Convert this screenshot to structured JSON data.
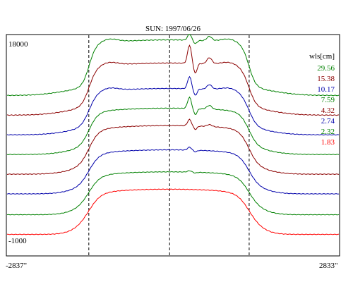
{
  "chart_data": {
    "type": "line",
    "title": "SUN: 1997/06/26",
    "xlabel": "",
    "ylabel": "",
    "xlim": [
      -2837,
      2833
    ],
    "ylim": [
      -1000,
      18000
    ],
    "x_tick_labels": [
      "-2837\"",
      "2833\""
    ],
    "y_tick_labels": [
      "18000",
      "-1000"
    ],
    "y_top_label": "18000",
    "y_bottom_label": "-1000",
    "x_left_label": "-2837\"",
    "x_right_label": "2833\"",
    "vertical_dashed_x": [
      -1440,
      -60,
      1300
    ],
    "legend_title": "wls[cm]",
    "legend_position": "right",
    "grid": false,
    "colors": {
      "green": "#008000",
      "darkred": "#8b0000",
      "blue": "#0000aa",
      "red": "#ff0000"
    },
    "series": [
      {
        "name": "29.56",
        "color": "#008000",
        "level": 0.0,
        "peak": 0.84,
        "spike": 0.05,
        "spike2": 0.04
      },
      {
        "name": "15.38",
        "color": "#8b0000",
        "level": 0.0,
        "peak": 0.72,
        "spike": 0.16,
        "spike2": 0.06
      },
      {
        "name": "10.17",
        "color": "#0000aa",
        "level": 0.0,
        "peak": 0.64,
        "spike": 0.12,
        "spike2": 0.05
      },
      {
        "name": "7.59",
        "color": "#008000",
        "level": 0.0,
        "peak": 0.54,
        "spike": 0.11,
        "spike2": 0.04
      },
      {
        "name": "4.32",
        "color": "#8b0000",
        "level": 0.0,
        "peak": 0.48,
        "spike": 0.06,
        "spike2": 0.02
      },
      {
        "name": "2.74",
        "color": "#0000aa",
        "level": 0.0,
        "peak": 0.38,
        "spike": 0.03,
        "spike2": 0.0
      },
      {
        "name": "2.32",
        "color": "#008000",
        "level": 0.0,
        "peak": 0.3,
        "spike": 0.015,
        "spike2": 0.0
      },
      {
        "name": "1.83",
        "color": "#ff0000",
        "level": 0.0,
        "peak": 0.24,
        "spike": 0.0,
        "spike2": 0.0
      }
    ],
    "series_baselines": [
      12800,
      11100,
      9400,
      7700,
      6000,
      4300,
      2500,
      800
    ],
    "series_amplitudes": [
      4800,
      4500,
      4000,
      4000,
      4200,
      3800,
      3700,
      3900
    ]
  }
}
